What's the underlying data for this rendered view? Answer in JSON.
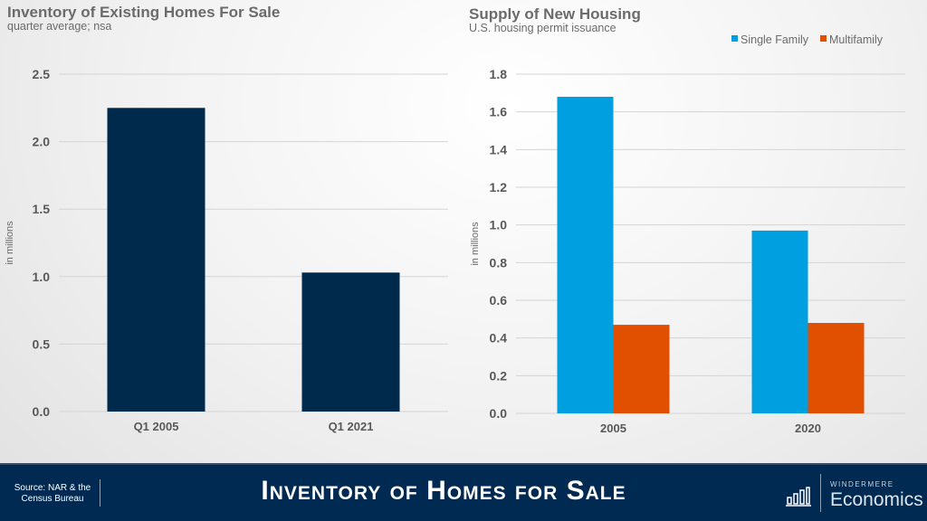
{
  "chart_data": [
    {
      "type": "bar",
      "title": "Inventory of Existing Homes For Sale",
      "subtitle": "quarter average; nsa",
      "ylabel": "in millions",
      "categories": [
        "Q1 2005",
        "Q1 2021"
      ],
      "values": [
        2.25,
        1.03
      ],
      "ylim": [
        0,
        2.5
      ],
      "yticks": [
        "0.0",
        "0.5",
        "1.0",
        "1.5",
        "2.0",
        "2.5"
      ],
      "grid": true,
      "colors": [
        "#002a4c"
      ]
    },
    {
      "type": "bar",
      "title": "Supply of New Housing",
      "subtitle": "U.S. housing permit issuance",
      "ylabel": "in millions",
      "categories": [
        "2005",
        "2020"
      ],
      "series": [
        {
          "name": "Single Family",
          "values": [
            1.68,
            0.97
          ],
          "color": "#009fdf"
        },
        {
          "name": "Multifamily",
          "values": [
            0.47,
            0.48
          ],
          "color": "#e15000"
        }
      ],
      "ylim": [
        0,
        1.8
      ],
      "yticks": [
        "0.0",
        "0.2",
        "0.4",
        "0.6",
        "0.8",
        "1.0",
        "1.2",
        "1.4",
        "1.6",
        "1.8"
      ],
      "grid": true,
      "legend": "top-right"
    }
  ],
  "footer": {
    "source": "Source: NAR & the Census Bureau",
    "title": "Inventory of Homes for Sale",
    "brand_top": "WINDERMERE",
    "brand": "Economics",
    "icon": "bar-chart-icon"
  }
}
